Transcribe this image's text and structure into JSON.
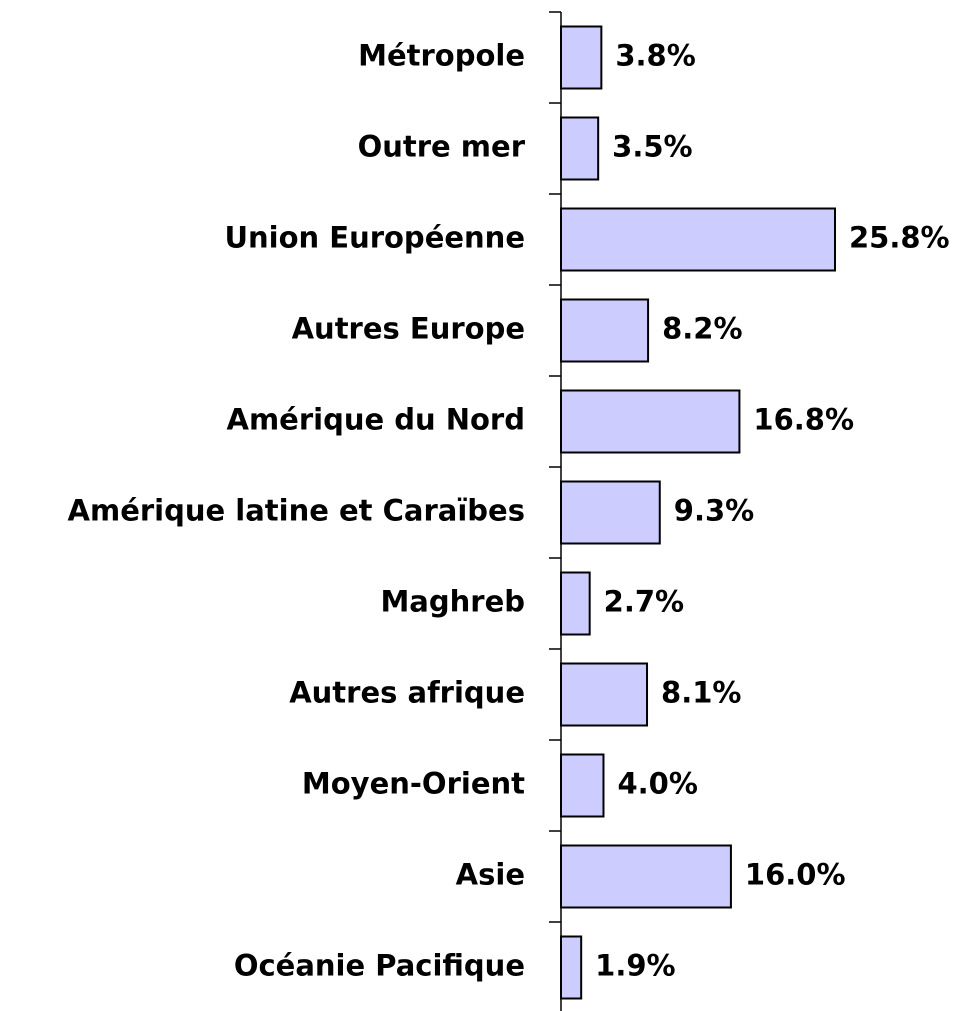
{
  "chart_data": {
    "type": "bar",
    "orientation": "horizontal",
    "categories": [
      "Métropole",
      "Outre mer",
      "Union Européenne",
      "Autres Europe",
      "Amérique du Nord",
      "Amérique latine et Caraïbes",
      "Maghreb",
      "Autres afrique",
      "Moyen-Orient",
      "Asie",
      "Océanie Pacifique"
    ],
    "values": [
      3.8,
      3.5,
      25.8,
      8.2,
      16.8,
      9.3,
      2.7,
      8.1,
      4.0,
      16.0,
      1.9
    ],
    "value_labels": [
      "3.8%",
      "3.5%",
      "25.8%",
      "8.2%",
      "16.8%",
      "9.3%",
      "2.7%",
      "8.1%",
      "4.0%",
      "16.0%",
      "1.9%"
    ],
    "color": "#ccccff"
  }
}
